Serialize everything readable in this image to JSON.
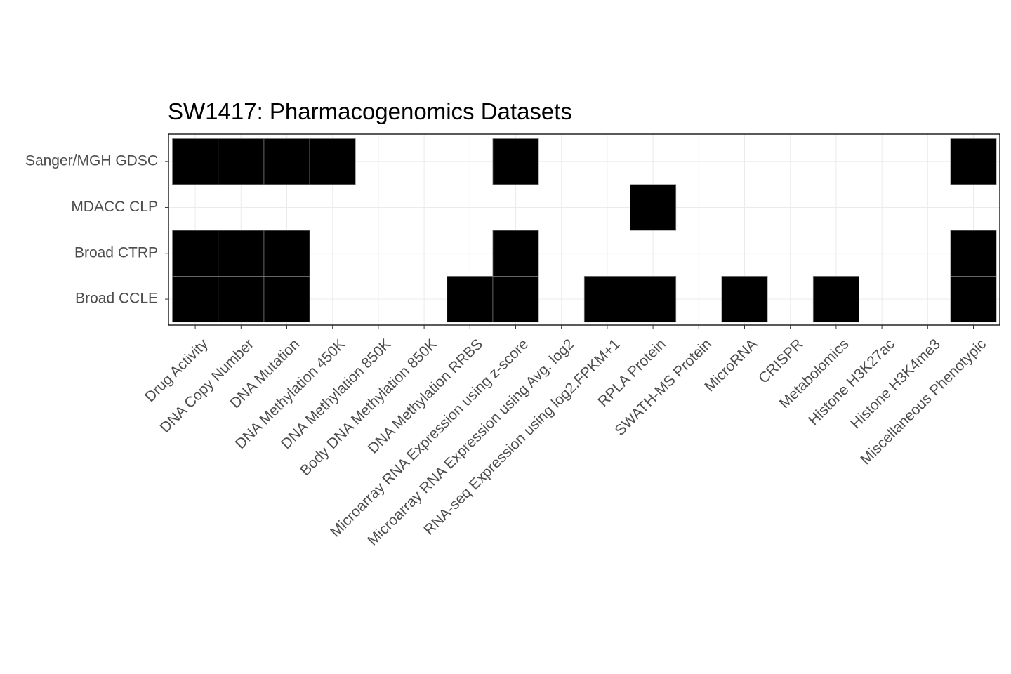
{
  "chart_data": {
    "type": "heatmap",
    "title": "SW1417: Pharmacogenomics Datasets",
    "xlabel": "",
    "ylabel": "",
    "grid": true,
    "legend": "none",
    "fill_color": "#000000",
    "categories": [
      "Drug Activity",
      "DNA Copy Number",
      "DNA Mutation",
      "DNA Methylation 450K",
      "DNA Methylation 850K",
      "Body DNA Methylation 850K",
      "DNA Methylation RRBS",
      "Microarray RNA Expression using z-score",
      "Microarray RNA Expression using Avg. log2",
      "RNA-seq Expression using log2.FPKM+1",
      "RPLA Protein",
      "SWATH-MS Protein",
      "MicroRNA",
      "CRISPR",
      "Metabolomics",
      "Histone H3K27ac",
      "Histone H3K4me3",
      "Miscellaneous Phenotypic"
    ],
    "rows": [
      "Sanger/MGH GDSC",
      "MDACC CLP",
      "Broad CTRP",
      "Broad CCLE"
    ],
    "values": [
      [
        1,
        1,
        1,
        1,
        0,
        0,
        0,
        1,
        0,
        0,
        0,
        0,
        0,
        0,
        0,
        0,
        0,
        1
      ],
      [
        0,
        0,
        0,
        0,
        0,
        0,
        0,
        0,
        0,
        0,
        1,
        0,
        0,
        0,
        0,
        0,
        0,
        0
      ],
      [
        1,
        1,
        1,
        0,
        0,
        0,
        0,
        1,
        0,
        0,
        0,
        0,
        0,
        0,
        0,
        0,
        0,
        1
      ],
      [
        1,
        1,
        1,
        0,
        0,
        0,
        1,
        1,
        0,
        1,
        1,
        0,
        1,
        0,
        1,
        0,
        0,
        1
      ]
    ]
  }
}
